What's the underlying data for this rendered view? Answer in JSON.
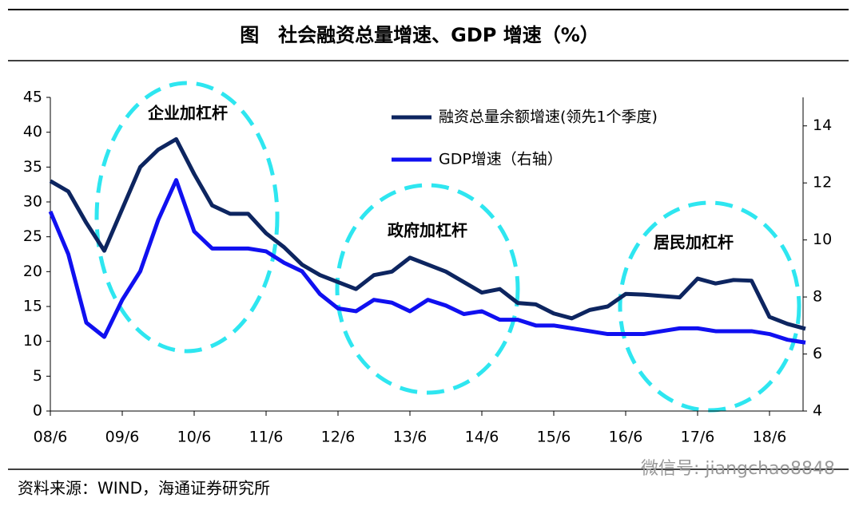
{
  "chart_data": {
    "type": "line",
    "title": "图　社会融资总量增速、GDP 增速（%）",
    "categories": [
      "08/6",
      null,
      null,
      null,
      "09/6",
      null,
      null,
      null,
      "10/6",
      null,
      null,
      null,
      "11/6",
      null,
      null,
      null,
      "12/6",
      null,
      null,
      null,
      "13/6",
      null,
      null,
      null,
      "14/6",
      null,
      null,
      null,
      "15/6",
      null,
      null,
      null,
      "16/6",
      null,
      null,
      null,
      "17/6",
      null,
      null,
      null,
      "18/6",
      null,
      null
    ],
    "series": [
      {
        "name": "融资总量余额增速(领先1个季度)",
        "color": "#0d2560",
        "values": [
          33,
          31.5,
          27,
          23,
          29,
          35,
          37.5,
          39,
          34,
          29.5,
          28.3,
          28.3,
          25.5,
          23.5,
          21,
          19.5,
          18.5,
          17.5,
          19.5,
          20,
          22,
          21,
          20,
          18.5,
          17,
          17.5,
          15.5,
          15.3,
          14,
          13.3,
          14.5,
          15,
          16.8,
          16.7,
          16.5,
          16.3,
          19,
          18.3,
          18.8,
          18.7,
          13.5,
          12.5,
          11.8
        ]
      },
      {
        "name": "GDP增速（右轴）",
        "color": "#1010f0",
        "axis": "y2",
        "values": [
          11.0,
          9.5,
          7.1,
          6.6,
          7.9,
          8.9,
          10.7,
          12.1,
          10.3,
          9.7,
          9.7,
          9.7,
          9.6,
          9.2,
          8.9,
          8.1,
          7.6,
          7.5,
          7.9,
          7.8,
          7.5,
          7.9,
          7.7,
          7.4,
          7.5,
          7.2,
          7.2,
          7.0,
          7.0,
          6.9,
          6.8,
          6.7,
          6.7,
          6.7,
          6.8,
          6.9,
          6.9,
          6.8,
          6.8,
          6.8,
          6.7,
          6.5,
          6.4
        ]
      }
    ],
    "ylim": [
      0,
      45
    ],
    "yticks": [
      0,
      5,
      10,
      15,
      20,
      25,
      30,
      35,
      40,
      45
    ],
    "y2lim": [
      4,
      15
    ],
    "y2ticks": [
      4,
      6,
      8,
      10,
      12,
      14
    ],
    "annotations": [
      "企业加杠杆",
      "政府加杠杆",
      "居民加杠杆"
    ],
    "source": "资料来源：WIND，海通证券研究所",
    "watermark": "微信号: jiangchao8848"
  }
}
